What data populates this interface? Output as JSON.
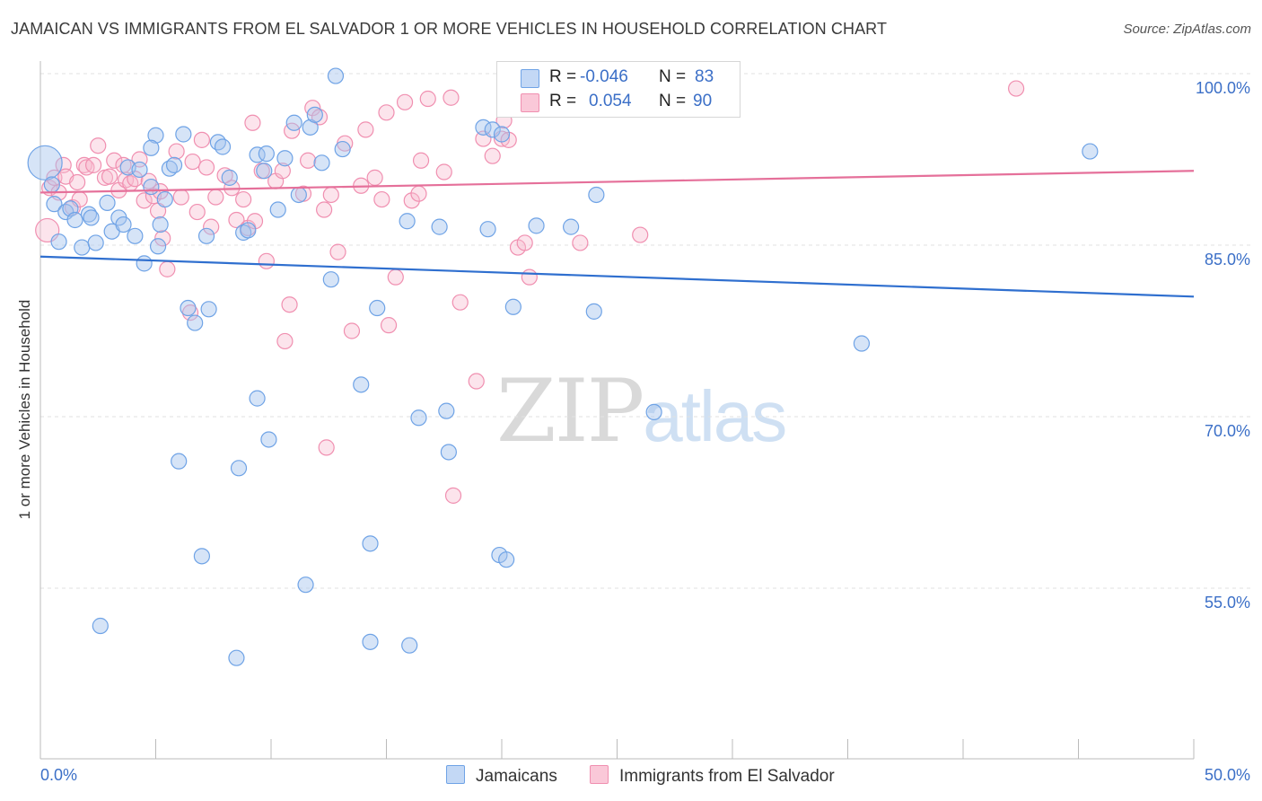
{
  "title": "JAMAICAN VS IMMIGRANTS FROM EL SALVADOR 1 OR MORE VEHICLES IN HOUSEHOLD CORRELATION CHART",
  "source": "Source: ZipAtlas.com",
  "watermark": {
    "zip": "ZIP",
    "atlas": "atlas"
  },
  "legend": {
    "rows": [
      {
        "r_label": "R =",
        "r_value": "-0.046",
        "n_label": "N =",
        "n_value": "83"
      },
      {
        "r_label": "R =",
        "r_value": "0.054",
        "n_label": "N =",
        "n_value": "90"
      }
    ]
  },
  "bottom_legend": [
    "Jamaicans",
    "Immigrants from El Salvador"
  ],
  "chart_data": {
    "type": "scatter",
    "title": "JAMAICAN VS IMMIGRANTS FROM EL SALVADOR 1 OR MORE VEHICLES IN HOUSEHOLD CORRELATION CHART",
    "xlabel": "",
    "ylabel": "1 or more Vehicles in Household",
    "xlim": [
      0,
      50
    ],
    "ylim": [
      40,
      103
    ],
    "x_tick_labels": [
      "0.0%",
      "50.0%"
    ],
    "y_ticks": [
      55,
      70,
      85,
      100
    ],
    "y_tick_labels": [
      "55.0%",
      "70.0%",
      "85.0%",
      "100.0%"
    ],
    "grid": true,
    "colors": {
      "jamaicans": "#6fa3e6",
      "el_salvador": "#f08fb0",
      "jamaicans_line": "#2f6fcf",
      "el_salvador_line": "#e5709a",
      "tick_text": "#3b6fc7"
    },
    "series": [
      {
        "name": "Jamaicans",
        "r": -0.046,
        "n": 83,
        "trend": [
          [
            0,
            84.0
          ],
          [
            50,
            80.5
          ]
        ],
        "points": [
          [
            0.2,
            92.2
          ],
          [
            0.5,
            90.3
          ],
          [
            0.6,
            88.6
          ],
          [
            0.8,
            85.3
          ],
          [
            1.1,
            87.9
          ],
          [
            1.3,
            88.2
          ],
          [
            1.5,
            87.2
          ],
          [
            1.8,
            84.8
          ],
          [
            2.1,
            87.7
          ],
          [
            2.2,
            87.4
          ],
          [
            2.4,
            85.2
          ],
          [
            2.9,
            88.7
          ],
          [
            3.1,
            86.2
          ],
          [
            3.4,
            87.4
          ],
          [
            3.6,
            86.8
          ],
          [
            3.8,
            91.8
          ],
          [
            4.1,
            85.8
          ],
          [
            4.3,
            91.6
          ],
          [
            4.5,
            83.4
          ],
          [
            4.8,
            90.1
          ],
          [
            5.0,
            94.6
          ],
          [
            5.2,
            86.8
          ],
          [
            5.4,
            89.0
          ],
          [
            5.6,
            91.7
          ],
          [
            5.8,
            92.0
          ],
          [
            6.2,
            94.7
          ],
          [
            6.4,
            79.5
          ],
          [
            6.7,
            78.2
          ],
          [
            7.3,
            79.4
          ],
          [
            7.2,
            85.8
          ],
          [
            7.7,
            94.0
          ],
          [
            7.9,
            93.6
          ],
          [
            8.2,
            90.9
          ],
          [
            8.8,
            86.1
          ],
          [
            9.0,
            86.3
          ],
          [
            9.4,
            92.9
          ],
          [
            9.7,
            91.5
          ],
          [
            9.8,
            93.0
          ],
          [
            10.3,
            88.1
          ],
          [
            10.6,
            92.6
          ],
          [
            11.0,
            95.7
          ],
          [
            11.2,
            89.4
          ],
          [
            11.7,
            95.3
          ],
          [
            11.9,
            96.4
          ],
          [
            12.2,
            92.2
          ],
          [
            12.6,
            82.0
          ],
          [
            12.8,
            99.8
          ],
          [
            13.1,
            93.4
          ],
          [
            13.9,
            72.8
          ],
          [
            14.6,
            79.5
          ],
          [
            15.9,
            87.1
          ],
          [
            16.4,
            69.9
          ],
          [
            17.3,
            86.6
          ],
          [
            17.6,
            70.5
          ],
          [
            17.7,
            66.9
          ],
          [
            19.2,
            95.3
          ],
          [
            19.4,
            86.4
          ],
          [
            19.6,
            95.1
          ],
          [
            19.9,
            57.9
          ],
          [
            20.2,
            57.5
          ],
          [
            20.0,
            94.7
          ],
          [
            20.5,
            79.6
          ],
          [
            21.5,
            86.7
          ],
          [
            23.0,
            86.6
          ],
          [
            24.0,
            79.2
          ],
          [
            24.1,
            89.4
          ],
          [
            26.6,
            70.4
          ],
          [
            27.4,
            99.9
          ],
          [
            35.6,
            76.4
          ],
          [
            45.5,
            93.2
          ],
          [
            9.4,
            71.6
          ],
          [
            9.9,
            68.0
          ],
          [
            6.0,
            66.1
          ],
          [
            8.6,
            65.5
          ],
          [
            7.0,
            57.8
          ],
          [
            14.3,
            58.9
          ],
          [
            11.5,
            55.3
          ],
          [
            2.6,
            51.7
          ],
          [
            8.5,
            48.9
          ],
          [
            14.3,
            50.3
          ],
          [
            16.0,
            50.0
          ],
          [
            4.8,
            93.5
          ],
          [
            5.1,
            84.9
          ]
        ]
      },
      {
        "name": "Immigrants from El Salvador",
        "r": 0.054,
        "n": 90,
        "trend": [
          [
            0,
            89.6
          ],
          [
            50,
            91.5
          ]
        ],
        "points": [
          [
            0.3,
            86.3
          ],
          [
            0.4,
            90.0
          ],
          [
            0.6,
            90.9
          ],
          [
            0.8,
            89.6
          ],
          [
            1.0,
            92.0
          ],
          [
            1.1,
            91.0
          ],
          [
            1.4,
            88.3
          ],
          [
            1.6,
            90.5
          ],
          [
            1.7,
            89.0
          ],
          [
            1.9,
            92.0
          ],
          [
            2.0,
            91.8
          ],
          [
            2.3,
            92.0
          ],
          [
            2.5,
            93.7
          ],
          [
            2.8,
            90.9
          ],
          [
            3.0,
            91.0
          ],
          [
            3.2,
            92.4
          ],
          [
            3.4,
            89.8
          ],
          [
            3.6,
            92.0
          ],
          [
            3.7,
            90.7
          ],
          [
            3.9,
            90.4
          ],
          [
            4.1,
            90.8
          ],
          [
            4.3,
            92.5
          ],
          [
            4.5,
            88.9
          ],
          [
            4.7,
            90.6
          ],
          [
            4.9,
            89.3
          ],
          [
            5.1,
            88.0
          ],
          [
            5.3,
            85.6
          ],
          [
            5.5,
            82.9
          ],
          [
            5.9,
            93.2
          ],
          [
            6.1,
            89.2
          ],
          [
            6.5,
            79.1
          ],
          [
            6.6,
            92.3
          ],
          [
            6.8,
            87.9
          ],
          [
            7.0,
            94.2
          ],
          [
            7.2,
            91.8
          ],
          [
            7.4,
            86.6
          ],
          [
            7.6,
            89.2
          ],
          [
            8.0,
            91.1
          ],
          [
            8.3,
            90.0
          ],
          [
            8.5,
            87.2
          ],
          [
            8.8,
            89.0
          ],
          [
            9.0,
            86.5
          ],
          [
            9.2,
            95.7
          ],
          [
            9.3,
            87.1
          ],
          [
            9.6,
            91.5
          ],
          [
            9.8,
            83.6
          ],
          [
            10.2,
            90.6
          ],
          [
            10.5,
            91.5
          ],
          [
            10.8,
            79.8
          ],
          [
            10.6,
            76.6
          ],
          [
            10.9,
            95.0
          ],
          [
            11.4,
            89.5
          ],
          [
            11.6,
            92.4
          ],
          [
            11.8,
            97.0
          ],
          [
            12.1,
            96.2
          ],
          [
            12.3,
            88.1
          ],
          [
            12.6,
            89.4
          ],
          [
            12.9,
            84.4
          ],
          [
            13.2,
            93.9
          ],
          [
            13.5,
            77.5
          ],
          [
            13.9,
            90.2
          ],
          [
            14.1,
            95.1
          ],
          [
            14.5,
            90.9
          ],
          [
            14.8,
            89.0
          ],
          [
            15.0,
            96.6
          ],
          [
            15.4,
            82.2
          ],
          [
            15.8,
            97.5
          ],
          [
            16.1,
            88.9
          ],
          [
            16.4,
            89.5
          ],
          [
            16.5,
            92.4
          ],
          [
            16.8,
            97.8
          ],
          [
            17.5,
            91.4
          ],
          [
            17.8,
            97.9
          ],
          [
            18.2,
            80.0
          ],
          [
            18.9,
            73.1
          ],
          [
            19.2,
            94.3
          ],
          [
            19.6,
            92.8
          ],
          [
            20.0,
            94.3
          ],
          [
            20.3,
            94.2
          ],
          [
            20.7,
            84.8
          ],
          [
            21.0,
            85.2
          ],
          [
            21.2,
            82.2
          ],
          [
            23.4,
            85.2
          ],
          [
            26.0,
            85.9
          ],
          [
            42.3,
            98.7
          ],
          [
            12.4,
            67.3
          ],
          [
            17.9,
            63.1
          ],
          [
            15.1,
            78.0
          ],
          [
            20.1,
            95.9
          ],
          [
            5.2,
            89.7
          ]
        ]
      }
    ]
  }
}
